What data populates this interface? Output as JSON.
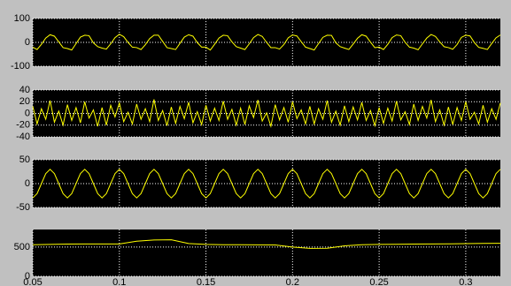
{
  "chart_data": [
    {
      "type": "line",
      "color": "#ffff00",
      "grid": true,
      "xlim": [
        0.05,
        0.32
      ],
      "xticks": [
        0.05,
        0.1,
        0.15,
        0.2,
        0.25,
        0.3
      ],
      "ylim": [
        -100,
        100
      ],
      "yticks": [
        -100,
        0,
        100
      ],
      "x": [
        0.05,
        0.0525,
        0.055,
        0.0575,
        0.06,
        0.0625,
        0.065,
        0.0675,
        0.07,
        0.0725,
        0.075,
        0.0775,
        0.08,
        0.0825,
        0.085,
        0.0875,
        0.09,
        0.0925,
        0.095,
        0.0975,
        0.1,
        0.1025,
        0.105,
        0.1075,
        0.11,
        0.1125,
        0.115,
        0.1175,
        0.12,
        0.1225,
        0.125,
        0.1275,
        0.13,
        0.1325,
        0.135,
        0.1375,
        0.14,
        0.1425,
        0.145,
        0.1475,
        0.15,
        0.1525,
        0.155,
        0.1575,
        0.16,
        0.1625,
        0.165,
        0.1675,
        0.17,
        0.1725,
        0.175,
        0.1775,
        0.18,
        0.1825,
        0.185,
        0.1875,
        0.19,
        0.1925,
        0.195,
        0.1975,
        0.2,
        0.2025,
        0.205,
        0.2075,
        0.21,
        0.2125,
        0.215,
        0.2175,
        0.22,
        0.2225,
        0.225,
        0.2275,
        0.23,
        0.2325,
        0.235,
        0.2375,
        0.24,
        0.2425,
        0.245,
        0.2475,
        0.25,
        0.2525,
        0.255,
        0.2575,
        0.26,
        0.2625,
        0.265,
        0.2675,
        0.27,
        0.2725,
        0.275,
        0.2775,
        0.28,
        0.2825,
        0.285,
        0.2875,
        0.29,
        0.2925,
        0.295,
        0.2975,
        0.3,
        0.3025,
        0.305,
        0.3075,
        0.31,
        0.3125,
        0.315,
        0.3175,
        0.32
      ],
      "values": [
        -20,
        -30,
        -8,
        18,
        32,
        26,
        2,
        -22,
        -26,
        -32,
        -5,
        22,
        30,
        28,
        -2,
        -18,
        -24,
        -28,
        -6,
        20,
        34,
        24,
        0,
        -20,
        -22,
        -30,
        -10,
        16,
        30,
        30,
        4,
        -22,
        -26,
        -30,
        -4,
        22,
        32,
        26,
        -1,
        -20,
        -20,
        -32,
        -8,
        18,
        30,
        28,
        2,
        -18,
        -24,
        -30,
        -6,
        20,
        33,
        25,
        0,
        -22,
        -22,
        -28,
        -9,
        19,
        31,
        27,
        3,
        -20,
        -26,
        -32,
        -5,
        21,
        30,
        29,
        -2,
        -18,
        -24,
        -30,
        -7,
        17,
        32,
        26,
        1,
        -22,
        -20,
        -30,
        -8,
        20,
        31,
        28,
        0,
        -20,
        -24,
        -31,
        -6,
        18,
        33,
        25,
        2,
        -18,
        -22,
        -29,
        -9,
        21,
        30,
        27,
        -1,
        -21,
        -25,
        -30,
        -5,
        19,
        31
      ]
    },
    {
      "type": "line",
      "color": "#ffff00",
      "grid": true,
      "xlim": [
        0.05,
        0.32
      ],
      "xticks": [
        0.05,
        0.1,
        0.15,
        0.2,
        0.25,
        0.3
      ],
      "ylim": [
        -40,
        40
      ],
      "yticks": [
        -40,
        -20,
        0,
        20,
        40
      ],
      "x": [
        0.05,
        0.0525,
        0.055,
        0.0575,
        0.06,
        0.0625,
        0.065,
        0.0675,
        0.07,
        0.0725,
        0.075,
        0.0775,
        0.08,
        0.0825,
        0.085,
        0.0875,
        0.09,
        0.0925,
        0.095,
        0.0975,
        0.1,
        0.1025,
        0.105,
        0.1075,
        0.11,
        0.1125,
        0.115,
        0.1175,
        0.12,
        0.1225,
        0.125,
        0.1275,
        0.13,
        0.1325,
        0.135,
        0.1375,
        0.14,
        0.1425,
        0.145,
        0.1475,
        0.15,
        0.1525,
        0.155,
        0.1575,
        0.16,
        0.1625,
        0.165,
        0.1675,
        0.17,
        0.1725,
        0.175,
        0.1775,
        0.18,
        0.1825,
        0.185,
        0.1875,
        0.19,
        0.1925,
        0.195,
        0.1975,
        0.2,
        0.2025,
        0.205,
        0.2075,
        0.21,
        0.2125,
        0.215,
        0.2175,
        0.22,
        0.2225,
        0.225,
        0.2275,
        0.23,
        0.2325,
        0.235,
        0.2375,
        0.24,
        0.2425,
        0.245,
        0.2475,
        0.25,
        0.2525,
        0.255,
        0.2575,
        0.26,
        0.2625,
        0.265,
        0.2675,
        0.27,
        0.2725,
        0.275,
        0.2775,
        0.28,
        0.2825,
        0.285,
        0.2875,
        0.29,
        0.2925,
        0.295,
        0.2975,
        0.3,
        0.3025,
        0.305,
        0.3075,
        0.31,
        0.3125,
        0.315,
        0.3175,
        0.32
      ],
      "values": [
        12,
        -18,
        8,
        -10,
        22,
        -15,
        4,
        -20,
        15,
        -12,
        10,
        -16,
        20,
        -8,
        6,
        -22,
        10,
        -20,
        14,
        -6,
        18,
        -14,
        2,
        -18,
        16,
        -10,
        8,
        -14,
        24,
        -12,
        5,
        -21,
        11,
        -17,
        12,
        -9,
        19,
        -16,
        3,
        -19,
        14,
        -13,
        9,
        -12,
        21,
        -10,
        7,
        -20,
        9,
        -19,
        13,
        -7,
        23,
        -13,
        1,
        -22,
        15,
        -11,
        10,
        -15,
        20,
        -9,
        6,
        -18,
        12,
        -18,
        8,
        -10,
        22,
        -15,
        4,
        -20,
        13,
        -14,
        11,
        -11,
        19,
        -12,
        5,
        -21,
        10,
        -17,
        9,
        -13,
        21,
        -11,
        3,
        -19,
        16,
        -12,
        12,
        -8,
        23,
        -14,
        6,
        -20,
        11,
        -19,
        10,
        -12,
        20,
        -10,
        2,
        -18,
        14,
        -15,
        8,
        -10,
        18
      ]
    },
    {
      "type": "line",
      "color": "#ffff00",
      "grid": true,
      "xlim": [
        0.05,
        0.32
      ],
      "xticks": [
        0.05,
        0.1,
        0.15,
        0.2,
        0.25,
        0.3
      ],
      "ylim": [
        -50,
        50
      ],
      "yticks": [
        -50,
        0,
        50
      ],
      "x": [
        0.05,
        0.0525,
        0.055,
        0.0575,
        0.06,
        0.0625,
        0.065,
        0.0675,
        0.07,
        0.0725,
        0.075,
        0.0775,
        0.08,
        0.0825,
        0.085,
        0.0875,
        0.09,
        0.0925,
        0.095,
        0.0975,
        0.1,
        0.1025,
        0.105,
        0.1075,
        0.11,
        0.1125,
        0.115,
        0.1175,
        0.12,
        0.1225,
        0.125,
        0.1275,
        0.13,
        0.1325,
        0.135,
        0.1375,
        0.14,
        0.1425,
        0.145,
        0.1475,
        0.15,
        0.1525,
        0.155,
        0.1575,
        0.16,
        0.1625,
        0.165,
        0.1675,
        0.17,
        0.1725,
        0.175,
        0.1775,
        0.18,
        0.1825,
        0.185,
        0.1875,
        0.19,
        0.1925,
        0.195,
        0.1975,
        0.2,
        0.2025,
        0.205,
        0.2075,
        0.21,
        0.2125,
        0.215,
        0.2175,
        0.22,
        0.2225,
        0.225,
        0.2275,
        0.23,
        0.2325,
        0.235,
        0.2375,
        0.24,
        0.2425,
        0.245,
        0.2475,
        0.25,
        0.2525,
        0.255,
        0.2575,
        0.26,
        0.2625,
        0.265,
        0.2675,
        0.27,
        0.2725,
        0.275,
        0.2775,
        0.28,
        0.2825,
        0.285,
        0.2875,
        0.29,
        0.2925,
        0.295,
        0.2975,
        0.3,
        0.3025,
        0.305,
        0.3075,
        0.31,
        0.3125,
        0.315,
        0.3175,
        0.32
      ],
      "values": [
        -30,
        -21,
        0,
        21,
        30,
        21,
        0,
        -21,
        -30,
        -21,
        0,
        21,
        30,
        21,
        0,
        -21,
        -30,
        -21,
        0,
        21,
        30,
        21,
        0,
        -21,
        -30,
        -21,
        0,
        21,
        30,
        21,
        0,
        -21,
        -30,
        -21,
        0,
        21,
        30,
        21,
        0,
        -21,
        -30,
        -21,
        0,
        21,
        30,
        21,
        0,
        -21,
        -30,
        -21,
        0,
        21,
        30,
        21,
        0,
        -21,
        -30,
        -21,
        0,
        21,
        30,
        21,
        0,
        -21,
        -30,
        -21,
        0,
        21,
        30,
        21,
        0,
        -21,
        -30,
        -21,
        0,
        21,
        30,
        21,
        0,
        -21,
        -30,
        -21,
        0,
        21,
        30,
        21,
        0,
        -21,
        -30,
        -21,
        0,
        21,
        30,
        21,
        0,
        -21,
        -30,
        -21,
        0,
        21,
        30,
        21,
        0,
        -21,
        -30,
        -21,
        0,
        21,
        30
      ]
    },
    {
      "type": "line",
      "color": "#ffff00",
      "grid": true,
      "xlim": [
        0.05,
        0.32
      ],
      "xticks": [
        0.05,
        0.1,
        0.15,
        0.2,
        0.25,
        0.3
      ],
      "ylim": [
        0,
        800
      ],
      "yticks": [
        0,
        500
      ],
      "x": [
        0.05,
        0.06,
        0.07,
        0.08,
        0.09,
        0.1,
        0.11,
        0.12,
        0.13,
        0.14,
        0.15,
        0.16,
        0.17,
        0.18,
        0.19,
        0.2,
        0.21,
        0.22,
        0.23,
        0.24,
        0.25,
        0.26,
        0.27,
        0.28,
        0.29,
        0.3,
        0.31,
        0.32
      ],
      "values": [
        540,
        545,
        550,
        552,
        552,
        553,
        600,
        620,
        625,
        560,
        545,
        540,
        540,
        538,
        535,
        500,
        478,
        480,
        520,
        540,
        545,
        548,
        550,
        552,
        555,
        558,
        562,
        565
      ]
    }
  ]
}
